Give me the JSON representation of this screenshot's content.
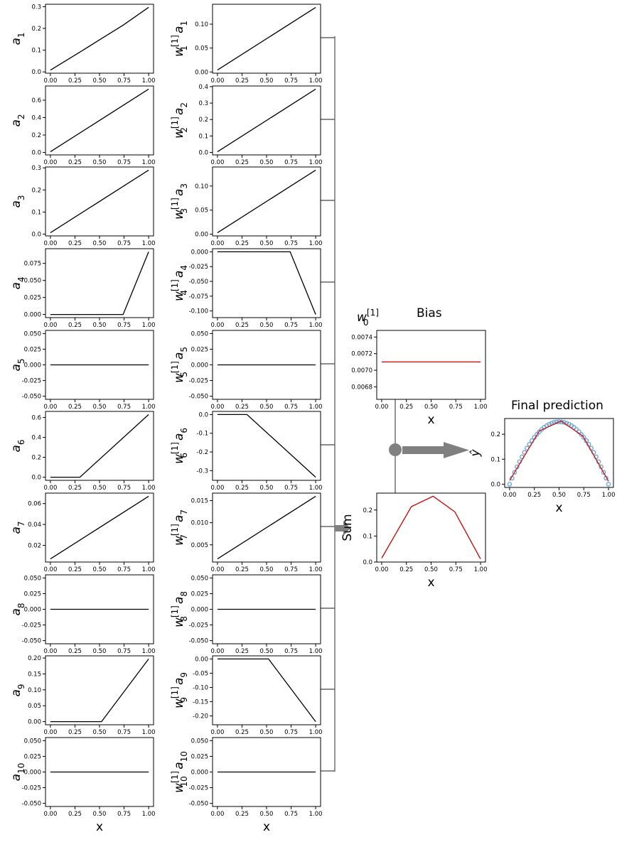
{
  "colors": {
    "line": "#000000",
    "sum_line": "#cc0000",
    "pred_line": "#cc1111",
    "pred_points": "#6ea6d6",
    "connector": "#666666",
    "arrow": "#808080"
  },
  "labels": {
    "bias_title": "Bias",
    "final_title": "Final prediction",
    "sum_ylabel": "Sum",
    "yhat": "ŷ",
    "x_label": "x",
    "w0_main": "w",
    "w0_sub": "0",
    "w0_sup": "[1]"
  },
  "chart_data": [
    {
      "id": "a1",
      "type": "line",
      "ylabel": {
        "main": "a",
        "sub": "1"
      },
      "x": [
        0,
        0.3,
        0.52,
        0.74,
        1
      ],
      "y": [
        0.008,
        0.091,
        0.153,
        0.215,
        0.297
      ],
      "ylim": [
        -0.006,
        0.311
      ],
      "yticks": [
        "0.0",
        "0.1",
        "0.2",
        "0.3"
      ],
      "ytick_values": [
        0,
        0.1,
        0.2,
        0.3
      ],
      "xticks": [
        "0.00",
        "0.25",
        "0.50",
        "0.75",
        "1.00"
      ]
    },
    {
      "id": "a2",
      "type": "line",
      "ylabel": {
        "main": "a",
        "sub": "2"
      },
      "x": [
        0,
        1
      ],
      "y": [
        0.008,
        0.727
      ],
      "ylim": [
        -0.028,
        0.763
      ],
      "yticks": [
        "0.0",
        "0.2",
        "0.4",
        "0.6"
      ],
      "ytick_values": [
        0,
        0.2,
        0.4,
        0.6
      ],
      "xticks": [
        "0.00",
        "0.25",
        "0.50",
        "0.75",
        "1.00"
      ]
    },
    {
      "id": "a3",
      "type": "line",
      "ylabel": {
        "main": "a",
        "sub": "3"
      },
      "x": [
        0,
        1
      ],
      "y": [
        0.006,
        0.29
      ],
      "ylim": [
        -0.008,
        0.304
      ],
      "yticks": [
        "0.0",
        "0.1",
        "0.2",
        "0.3"
      ],
      "ytick_values": [
        0,
        0.1,
        0.2,
        0.3
      ],
      "xticks": [
        "0.00",
        "0.25",
        "0.50",
        "0.75",
        "1.00"
      ]
    },
    {
      "id": "a4",
      "type": "line",
      "ylabel": {
        "main": "a",
        "sub": "4"
      },
      "x": [
        0,
        0.74,
        1
      ],
      "y": [
        0,
        0,
        0.092
      ],
      "ylim": [
        -0.0046,
        0.0966
      ],
      "yticks": [
        "0.000",
        "0.025",
        "0.050",
        "0.075"
      ],
      "ytick_values": [
        0,
        0.025,
        0.05,
        0.075
      ],
      "xticks": [
        "0.00",
        "0.25",
        "0.50",
        "0.75",
        "1.00"
      ]
    },
    {
      "id": "a5",
      "type": "line",
      "ylabel": {
        "main": "a",
        "sub": "5"
      },
      "x": [
        0,
        1
      ],
      "y": [
        0,
        0
      ],
      "ylim": [
        -0.055,
        0.055
      ],
      "yticks": [
        "0.050",
        "0.025",
        "0.000",
        "-0.025",
        "-0.050"
      ],
      "ytick_values": [
        0.05,
        0.025,
        0,
        -0.025,
        -0.05
      ],
      "xticks": [
        "0.00",
        "0.25",
        "0.50",
        "0.75",
        "1.00"
      ]
    },
    {
      "id": "a6",
      "type": "line",
      "ylabel": {
        "main": "a",
        "sub": "6"
      },
      "x": [
        0,
        0.3,
        1
      ],
      "y": [
        0,
        0,
        0.63
      ],
      "ylim": [
        -0.0315,
        0.6615
      ],
      "yticks": [
        "0.0",
        "0.2",
        "0.4",
        "0.6"
      ],
      "ytick_values": [
        0,
        0.2,
        0.4,
        0.6
      ],
      "xticks": [
        "0.00",
        "0.25",
        "0.50",
        "0.75",
        "1.00"
      ]
    },
    {
      "id": "a7",
      "type": "line",
      "ylabel": {
        "main": "a",
        "sub": "7"
      },
      "x": [
        0,
        1
      ],
      "y": [
        0.007,
        0.067
      ],
      "ylim": [
        0.004,
        0.07
      ],
      "yticks": [
        "0.02",
        "0.04",
        "0.06"
      ],
      "ytick_values": [
        0.02,
        0.04,
        0.06
      ],
      "xticks": [
        "0.00",
        "0.25",
        "0.50",
        "0.75",
        "1.00"
      ]
    },
    {
      "id": "a8",
      "type": "line",
      "ylabel": {
        "main": "a",
        "sub": "8"
      },
      "x": [
        0,
        1
      ],
      "y": [
        0,
        0
      ],
      "ylim": [
        -0.055,
        0.055
      ],
      "yticks": [
        "0.050",
        "0.025",
        "0.000",
        "-0.025",
        "-0.050"
      ],
      "ytick_values": [
        0.05,
        0.025,
        0,
        -0.025,
        -0.05
      ],
      "xticks": [
        "0.00",
        "0.25",
        "0.50",
        "0.75",
        "1.00"
      ]
    },
    {
      "id": "a9",
      "type": "line",
      "ylabel": {
        "main": "a",
        "sub": "9"
      },
      "x": [
        0,
        0.52,
        1
      ],
      "y": [
        0,
        0,
        0.197
      ],
      "ylim": [
        -0.0098,
        0.2068
      ],
      "yticks": [
        "0.00",
        "0.05",
        "0.10",
        "0.15",
        "0.20"
      ],
      "ytick_values": [
        0,
        0.05,
        0.1,
        0.15,
        0.2
      ],
      "xticks": [
        "0.00",
        "0.25",
        "0.50",
        "0.75",
        "1.00"
      ]
    },
    {
      "id": "a10",
      "type": "line",
      "ylabel": {
        "main": "a",
        "sub": "10"
      },
      "x": [
        0,
        1
      ],
      "y": [
        0,
        0
      ],
      "ylim": [
        -0.055,
        0.055
      ],
      "yticks": [
        "0.050",
        "0.025",
        "0.000",
        "-0.025",
        "-0.050"
      ],
      "ytick_values": [
        0.05,
        0.025,
        0,
        -0.025,
        -0.05
      ],
      "xticks": [
        "0.00",
        "0.25",
        "0.50",
        "0.75",
        "1.00"
      ],
      "xlabel": "x"
    },
    {
      "id": "wa1",
      "type": "line",
      "ylabel": {
        "main": "w",
        "sub": "1",
        "sup": "[1]",
        "tail": "a",
        "tail_sub": "1"
      },
      "x": [
        0,
        1
      ],
      "y": [
        0.004,
        0.135
      ],
      "ylim": [
        -0.0026,
        0.1416
      ],
      "yticks": [
        "0.00",
        "0.05",
        "0.10"
      ],
      "ytick_values": [
        0,
        0.05,
        0.1
      ],
      "xticks": [
        "0.00",
        "0.25",
        "0.50",
        "0.75",
        "1.00"
      ]
    },
    {
      "id": "wa2",
      "type": "line",
      "ylabel": {
        "main": "w",
        "sub": "2",
        "sup": "[1]",
        "tail": "a",
        "tail_sub": "2"
      },
      "x": [
        0,
        1
      ],
      "y": [
        0.004,
        0.385
      ],
      "ylim": [
        -0.015,
        0.404
      ],
      "yticks": [
        "0.0",
        "0.1",
        "0.2",
        "0.3",
        "0.4"
      ],
      "ytick_values": [
        0,
        0.1,
        0.2,
        0.3,
        0.4
      ],
      "xticks": [
        "0.00",
        "0.25",
        "0.50",
        "0.75",
        "1.00"
      ]
    },
    {
      "id": "wa3",
      "type": "line",
      "ylabel": {
        "main": "w",
        "sub": "3",
        "sup": "[1]",
        "tail": "a",
        "tail_sub": "3"
      },
      "x": [
        0,
        1
      ],
      "y": [
        0.003,
        0.133
      ],
      "ylim": [
        -0.0035,
        0.1395
      ],
      "yticks": [
        "0.00",
        "0.05",
        "0.10"
      ],
      "ytick_values": [
        0,
        0.05,
        0.1
      ],
      "xticks": [
        "0.00",
        "0.25",
        "0.50",
        "0.75",
        "1.00"
      ]
    },
    {
      "id": "wa4",
      "type": "line",
      "ylabel": {
        "main": "w",
        "sub": "4",
        "sup": "[1]",
        "tail": "a",
        "tail_sub": "4"
      },
      "x": [
        0,
        0.74,
        1
      ],
      "y": [
        0,
        0,
        -0.106
      ],
      "ylim": [
        -0.1113,
        0.0053
      ],
      "yticks": [
        "0.000",
        "-0.025",
        "-0.050",
        "-0.075",
        "-0.100"
      ],
      "ytick_values": [
        0,
        -0.025,
        -0.05,
        -0.075,
        -0.1
      ],
      "xticks": [
        "0.00",
        "0.25",
        "0.50",
        "0.75",
        "1.00"
      ]
    },
    {
      "id": "wa5",
      "type": "line",
      "ylabel": {
        "main": "w",
        "sub": "5",
        "sup": "[1]",
        "tail": "a",
        "tail_sub": "5"
      },
      "x": [
        0,
        1
      ],
      "y": [
        0,
        0
      ],
      "ylim": [
        -0.055,
        0.055
      ],
      "yticks": [
        "0.050",
        "0.025",
        "0.000",
        "-0.025",
        "-0.050"
      ],
      "ytick_values": [
        0.05,
        0.025,
        0,
        -0.025,
        -0.05
      ],
      "xticks": [
        "0.00",
        "0.25",
        "0.50",
        "0.75",
        "1.00"
      ]
    },
    {
      "id": "wa6",
      "type": "line",
      "ylabel": {
        "main": "w",
        "sub": "6",
        "sup": "[1]",
        "tail": "a",
        "tail_sub": "6"
      },
      "x": [
        0,
        0.3,
        1
      ],
      "y": [
        0,
        0,
        -0.335
      ],
      "ylim": [
        -0.35175,
        0.01675
      ],
      "yticks": [
        "0.0",
        "-0.1",
        "-0.2",
        "-0.3"
      ],
      "ytick_values": [
        0,
        -0.1,
        -0.2,
        -0.3
      ],
      "xticks": [
        "0.00",
        "0.25",
        "0.50",
        "0.75",
        "1.00"
      ]
    },
    {
      "id": "wa7",
      "type": "line",
      "ylabel": {
        "main": "w",
        "sub": "7",
        "sup": "[1]",
        "tail": "a",
        "tail_sub": "7"
      },
      "x": [
        0,
        1
      ],
      "y": [
        0.0018,
        0.016
      ],
      "ylim": [
        0.0011,
        0.0167
      ],
      "yticks": [
        "0.005",
        "0.010",
        "0.015"
      ],
      "ytick_values": [
        0.005,
        0.01,
        0.015
      ],
      "xticks": [
        "0.00",
        "0.25",
        "0.50",
        "0.75",
        "1.00"
      ]
    },
    {
      "id": "wa8",
      "type": "line",
      "ylabel": {
        "main": "w",
        "sub": "8",
        "sup": "[1]",
        "tail": "a",
        "tail_sub": "8"
      },
      "x": [
        0,
        1
      ],
      "y": [
        0,
        0
      ],
      "ylim": [
        -0.055,
        0.055
      ],
      "yticks": [
        "0.050",
        "0.025",
        "0.000",
        "-0.025",
        "-0.050"
      ],
      "ytick_values": [
        0.05,
        0.025,
        0,
        -0.025,
        -0.05
      ],
      "xticks": [
        "0.00",
        "0.25",
        "0.50",
        "0.75",
        "1.00"
      ]
    },
    {
      "id": "wa9",
      "type": "line",
      "ylabel": {
        "main": "w",
        "sub": "9",
        "sup": "[1]",
        "tail": "a",
        "tail_sub": "9"
      },
      "x": [
        0,
        0.52,
        1
      ],
      "y": [
        0,
        0,
        -0.22
      ],
      "ylim": [
        -0.231,
        0.011
      ],
      "yticks": [
        "0.00",
        "-0.05",
        "-0.10",
        "-0.15",
        "-0.20"
      ],
      "ytick_values": [
        0,
        -0.05,
        -0.1,
        -0.15,
        -0.2
      ],
      "xticks": [
        "0.00",
        "0.25",
        "0.50",
        "0.75",
        "1.00"
      ]
    },
    {
      "id": "wa10",
      "type": "line",
      "ylabel": {
        "main": "w",
        "sub": "10",
        "sup": "[1]",
        "tail": "a",
        "tail_sub": "10"
      },
      "x": [
        0,
        1
      ],
      "y": [
        0,
        0
      ],
      "ylim": [
        -0.055,
        0.055
      ],
      "yticks": [
        "0.050",
        "0.025",
        "0.000",
        "-0.025",
        "-0.050"
      ],
      "ytick_values": [
        0.05,
        0.025,
        0,
        -0.025,
        -0.05
      ],
      "xticks": [
        "0.00",
        "0.25",
        "0.50",
        "0.75",
        "1.00"
      ],
      "xlabel": "x"
    },
    {
      "id": "bias",
      "type": "line",
      "x": [
        0,
        1
      ],
      "y": [
        0.0071,
        0.0071
      ],
      "ylim": [
        0.00665,
        0.00748
      ],
      "yticks": [
        "0.0074",
        "0.0072",
        "0.0070",
        "0.0068"
      ],
      "ytick_values": [
        0.0074,
        0.0072,
        0.007,
        0.0068
      ],
      "xticks": [
        "0.00",
        "0.25",
        "0.50",
        "0.75",
        "1.00"
      ],
      "xlabel": "x"
    },
    {
      "id": "sum",
      "type": "line",
      "ylabel": {
        "main": "Sum"
      },
      "x": [
        0,
        0.3,
        0.52,
        0.74,
        1
      ],
      "y": [
        0.015,
        0.213,
        0.253,
        0.193,
        0.012
      ],
      "ylim": [
        0,
        0.265
      ],
      "yticks": [
        "0.0",
        "0.1",
        "0.2"
      ],
      "ytick_values": [
        0,
        0.1,
        0.2
      ],
      "xticks": [
        "0.00",
        "0.25",
        "0.50",
        "0.75",
        "1.00"
      ],
      "xlabel": "x"
    },
    {
      "id": "pred",
      "type": "line+scatter",
      "ylabel": {
        "main": "ŷ"
      },
      "x": [
        0,
        0.3,
        0.52,
        0.74,
        1
      ],
      "y": [
        0.015,
        0.213,
        0.253,
        0.193,
        0.012
      ],
      "points_curve": "y = x(1-x)",
      "ylim": [
        -0.013,
        0.263
      ],
      "yticks": [
        "0.0",
        "0.1",
        "0.2"
      ],
      "ytick_values": [
        0,
        0.1,
        0.2
      ],
      "xticks": [
        "0.00",
        "0.25",
        "0.50",
        "0.75",
        "1.00"
      ],
      "xlabel": "x"
    }
  ]
}
